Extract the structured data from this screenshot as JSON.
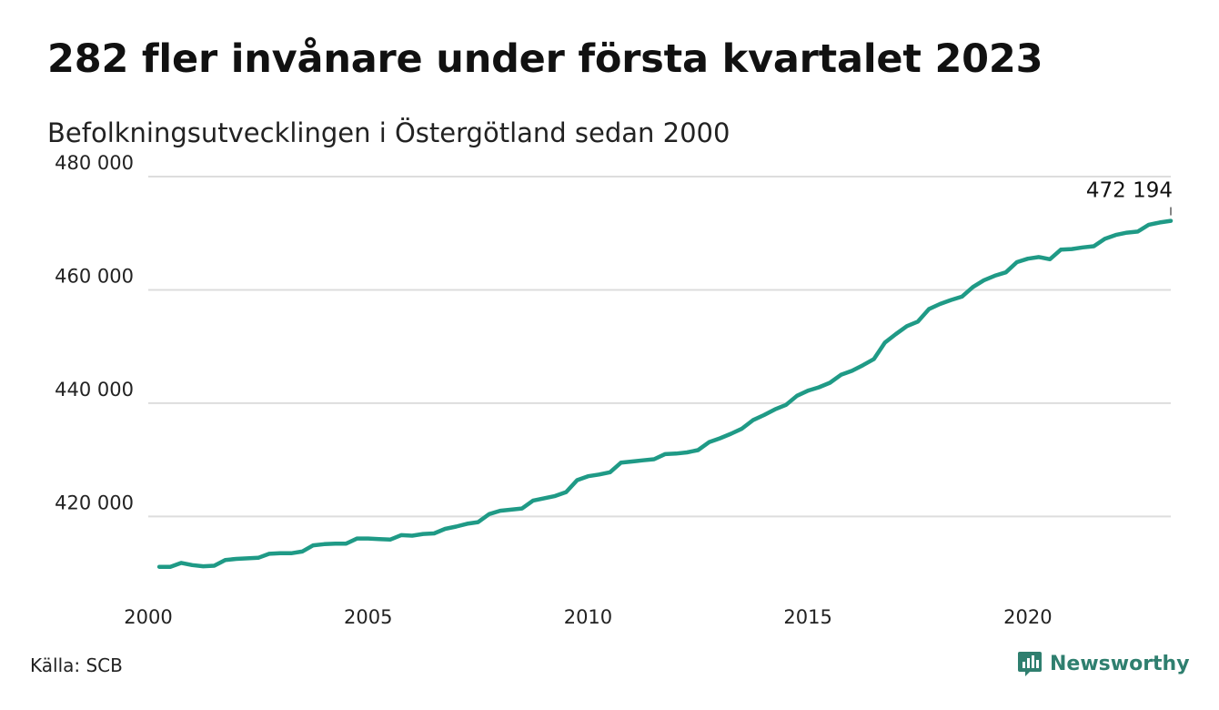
{
  "title": "282 fler invånare under första kvartalet 2023",
  "subtitle": "Befolkningsutvecklingen i Östergötland sedan 2000",
  "source": "Källa: SCB",
  "brand": {
    "name": "Newsworthy",
    "icon": "bar-chart-icon",
    "color": "#2f7f6f"
  },
  "chart_data": {
    "type": "line",
    "title": "282 fler invånare under första kvartalet 2023",
    "subtitle": "Befolkningsutvecklingen i Östergötland sedan 2000",
    "xlabel": "",
    "ylabel": "",
    "xlim": [
      2000,
      2023.25
    ],
    "ylim": [
      408000,
      480000
    ],
    "grid": "horizontal",
    "x_ticks": [
      2000,
      2005,
      2010,
      2015,
      2020
    ],
    "x_tick_labels": [
      "2000",
      "2005",
      "2010",
      "2015",
      "2020"
    ],
    "y_ticks": [
      420000,
      440000,
      460000,
      480000
    ],
    "y_tick_labels": [
      "420 000",
      "440 000",
      "460 000",
      "480 000"
    ],
    "series": [
      {
        "color": "#1f9a86",
        "x": [
          2000.25,
          2000.5,
          2000.75,
          2001,
          2001.25,
          2001.5,
          2001.75,
          2002,
          2002.25,
          2002.5,
          2002.75,
          2003,
          2003.25,
          2003.5,
          2003.75,
          2004,
          2004.25,
          2004.5,
          2004.75,
          2005,
          2005.25,
          2005.5,
          2005.75,
          2006,
          2006.25,
          2006.5,
          2006.75,
          2007,
          2007.25,
          2007.5,
          2007.75,
          2008,
          2008.25,
          2008.5,
          2008.75,
          2009,
          2009.25,
          2009.5,
          2009.75,
          2010,
          2010.25,
          2010.5,
          2010.75,
          2011,
          2011.25,
          2011.5,
          2011.75,
          2012,
          2012.25,
          2012.5,
          2012.75,
          2013,
          2013.25,
          2013.5,
          2013.75,
          2014,
          2014.25,
          2014.5,
          2014.75,
          2015,
          2015.25,
          2015.5,
          2015.75,
          2016,
          2016.25,
          2016.5,
          2016.75,
          2017,
          2017.25,
          2017.5,
          2017.75,
          2018,
          2018.25,
          2018.5,
          2018.75,
          2019,
          2019.25,
          2019.5,
          2019.75,
          2020,
          2020.25,
          2020.5,
          2020.75,
          2021,
          2021.25,
          2021.5,
          2021.75,
          2022,
          2022.25,
          2022.5,
          2022.75,
          2023,
          2023.25
        ],
        "values": [
          411100,
          411100,
          411800,
          411400,
          411200,
          411300,
          412300,
          412500,
          412600,
          412700,
          413400,
          413500,
          413500,
          413800,
          414900,
          415100,
          415200,
          415200,
          416100,
          416100,
          416000,
          415900,
          416700,
          416600,
          416900,
          417000,
          417800,
          418200,
          418700,
          419000,
          420400,
          421000,
          421200,
          421400,
          422800,
          423200,
          423600,
          424300,
          426400,
          427100,
          427400,
          427800,
          429500,
          429700,
          429900,
          430100,
          431000,
          431100,
          431300,
          431700,
          433100,
          433800,
          434600,
          435500,
          437000,
          437900,
          438900,
          439700,
          441300,
          442200,
          442800,
          443600,
          445000,
          445700,
          446700,
          447800,
          450700,
          452200,
          453600,
          454400,
          456600,
          457500,
          458200,
          458800,
          460500,
          461700,
          462500,
          463100,
          464900,
          465500,
          465800,
          465400,
          467100,
          467200,
          467500,
          467700,
          469000,
          469700,
          470100,
          470300,
          471500,
          471900,
          472194
        ]
      }
    ],
    "annotation": {
      "x": 2023.25,
      "y": 472194,
      "label": "472 194"
    }
  }
}
